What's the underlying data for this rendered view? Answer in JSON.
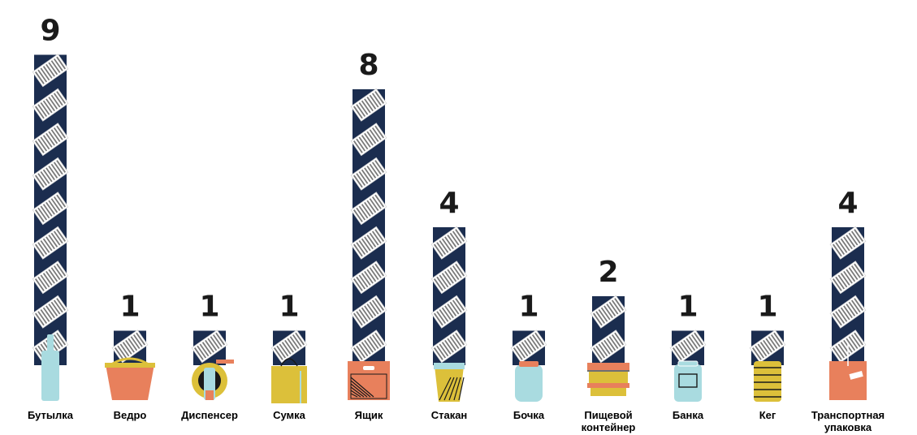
{
  "chart_data": {
    "type": "bar",
    "categories": [
      "Бутылка",
      "Ведро",
      "Диспенсер",
      "Сумка",
      "Ящик",
      "Стакан",
      "Бочка",
      "Пищевой контейнер",
      "Банка",
      "Кег",
      "Транспортная упаковка"
    ],
    "values": [
      9,
      1,
      1,
      1,
      8,
      4,
      1,
      2,
      1,
      1,
      4
    ],
    "icons": [
      "bottle-icon",
      "bucket-icon",
      "dispenser-icon",
      "bag-icon",
      "crate-icon",
      "cup-icon",
      "barrel-icon",
      "food-container-icon",
      "jar-icon",
      "keg-icon",
      "shipping-box-icon"
    ],
    "ylim": [
      0,
      9
    ],
    "grid": false,
    "legend": "none",
    "colors": {
      "bar": "#1b2d4f",
      "panel": "#ffffff",
      "stripe": "#7a7a7a",
      "light_blue": "#a9dbe0",
      "orange": "#e8805c",
      "yellow": "#dcc03a",
      "dark": "#1a1a1a"
    }
  }
}
